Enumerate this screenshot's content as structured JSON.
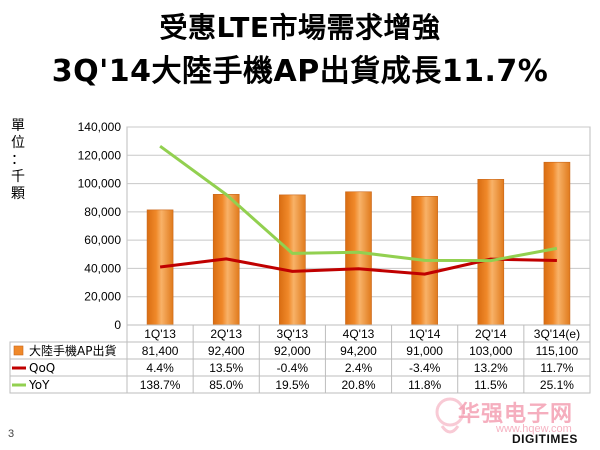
{
  "header": {
    "title_line1": "受惠LTE市場需求增強",
    "title_line2": "3Q'14大陸手機AP出貨成長11.7%"
  },
  "page_number": "3",
  "watermark": {
    "text": "华强电子网",
    "url": "www.hqew.com",
    "brand": "DIGITIMES"
  },
  "colors": {
    "bar": "#f0892a",
    "qoq": "#c00000",
    "yoy": "#92d050",
    "grid": "#c8c8c8"
  },
  "chart_data": {
    "type": "bar",
    "categories": [
      "1Q'13",
      "2Q'13",
      "3Q'13",
      "4Q'13",
      "1Q'14",
      "2Q'14",
      "3Q'14(e)"
    ],
    "yunit_label": [
      "單",
      "位",
      "：",
      "千",
      "顆"
    ],
    "ylim": [
      0,
      140000
    ],
    "yticks": [
      "0",
      "20,000",
      "40,000",
      "60,000",
      "80,000",
      "100,000",
      "120,000",
      "140,000"
    ],
    "ytick_values": [
      0,
      20000,
      40000,
      60000,
      80000,
      100000,
      120000,
      140000
    ],
    "grid": true,
    "series": [
      {
        "name": "大陸手機AP出貨",
        "kind": "bar",
        "values": [
          81400,
          92400,
          92000,
          94200,
          91000,
          103000,
          115100
        ],
        "labels": [
          "81,400",
          "92,400",
          "92,000",
          "94,200",
          "91,000",
          "103,000",
          "115,100"
        ]
      },
      {
        "name": "QoQ",
        "kind": "line",
        "values": [
          4.4,
          13.5,
          -0.4,
          2.4,
          -3.4,
          13.2,
          11.7
        ],
        "labels": [
          "4.4%",
          "13.5%",
          "-0.4%",
          "2.4%",
          "-3.4%",
          "13.2%",
          "11.7%"
        ]
      },
      {
        "name": "YoY",
        "kind": "line",
        "values": [
          138.7,
          85.0,
          19.5,
          20.8,
          11.8,
          11.5,
          25.1
        ],
        "labels": [
          "138.7%",
          "85.0%",
          "19.5%",
          "20.8%",
          "11.8%",
          "11.5%",
          "25.1%"
        ]
      }
    ]
  }
}
